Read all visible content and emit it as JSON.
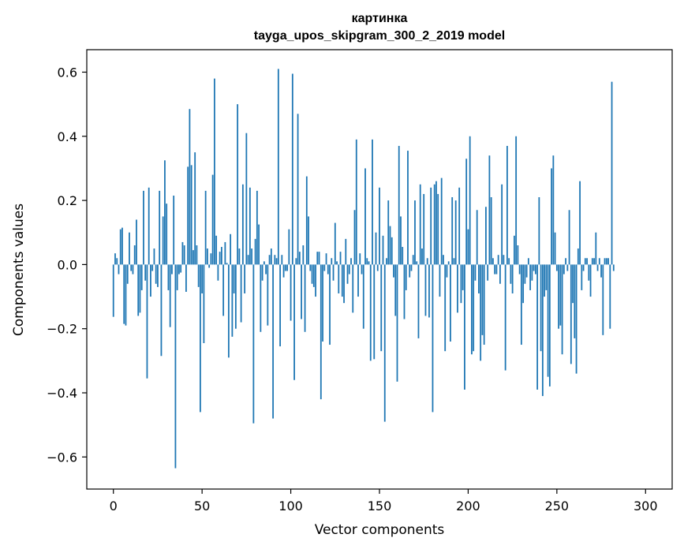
{
  "chart_data": {
    "type": "bar",
    "title_line1": "картинка",
    "title_line2": "tayga_upos_skipgram_300_2_2019 model",
    "xlabel": "Vector components",
    "ylabel": "Components values",
    "xlim": [
      -15,
      315
    ],
    "ylim": [
      -0.7,
      0.67
    ],
    "xticks": [
      0,
      50,
      100,
      150,
      200,
      250,
      300
    ],
    "yticks": [
      0.6,
      0.4,
      0.2,
      0.0,
      -0.2,
      -0.4,
      -0.6
    ],
    "ytick_labels": [
      "0.6",
      "0.4",
      "0.2",
      "0.0",
      "−0.2",
      "−0.4",
      "−0.6"
    ],
    "xtick_labels": [
      "0",
      "50",
      "100",
      "150",
      "200",
      "250",
      "300"
    ],
    "color": "#1f77b4",
    "values": [
      -0.163,
      0.035,
      0.02,
      -0.03,
      0.11,
      0.115,
      -0.185,
      -0.19,
      -0.06,
      0.1,
      -0.02,
      -0.03,
      0.06,
      0.14,
      -0.16,
      -0.15,
      -0.08,
      0.23,
      -0.05,
      -0.355,
      0.24,
      -0.1,
      -0.02,
      0.05,
      -0.06,
      -0.07,
      0.23,
      -0.285,
      0.15,
      0.325,
      0.19,
      -0.08,
      -0.195,
      -0.03,
      0.215,
      -0.635,
      -0.08,
      -0.03,
      -0.025,
      0.07,
      0.06,
      -0.085,
      0.305,
      0.485,
      0.31,
      0.045,
      0.35,
      0.06,
      -0.07,
      -0.46,
      -0.09,
      -0.245,
      0.23,
      0.05,
      -0.01,
      0.035,
      0.28,
      0.58,
      0.09,
      -0.05,
      0.04,
      0.055,
      -0.16,
      0.07,
      0.005,
      -0.29,
      0.095,
      -0.225,
      -0.09,
      -0.2,
      0.5,
      0.05,
      -0.18,
      0.25,
      -0.09,
      0.41,
      0.03,
      0.24,
      0.05,
      -0.495,
      0.08,
      0.23,
      0.125,
      -0.21,
      -0.05,
      0.01,
      -0.03,
      -0.19,
      0.03,
      0.05,
      -0.48,
      0.03,
      0.02,
      0.61,
      -0.255,
      0.03,
      -0.04,
      -0.02,
      -0.02,
      0.11,
      -0.175,
      0.595,
      -0.36,
      0.02,
      0.47,
      0.04,
      -0.17,
      0.06,
      -0.21,
      0.275,
      0.15,
      -0.02,
      -0.06,
      -0.07,
      -0.1,
      0.04,
      0.04,
      -0.42,
      -0.24,
      -0.02,
      0.035,
      -0.03,
      -0.25,
      0.02,
      -0.05,
      0.13,
      0.01,
      -0.09,
      0.04,
      -0.1,
      -0.12,
      0.08,
      -0.06,
      -0.03,
      0.02,
      -0.15,
      0.17,
      0.39,
      -0.1,
      0.035,
      -0.03,
      -0.2,
      0.3,
      0.02,
      0.01,
      -0.3,
      0.39,
      -0.295,
      0.1,
      -0.02,
      0.24,
      -0.27,
      0.09,
      -0.49,
      0.02,
      0.2,
      0.12,
      0.085,
      -0.04,
      -0.16,
      -0.365,
      0.37,
      0.15,
      0.055,
      -0.17,
      -0.08,
      0.355,
      -0.04,
      -0.02,
      0.03,
      0.2,
      0.01,
      -0.23,
      0.25,
      0.05,
      0.22,
      -0.16,
      0.02,
      -0.165,
      0.24,
      -0.46,
      0.25,
      0.26,
      0.22,
      -0.1,
      0.27,
      0.03,
      -0.27,
      -0.04,
      0.01,
      -0.24,
      0.21,
      0.02,
      0.2,
      -0.15,
      0.24,
      -0.12,
      -0.08,
      -0.39,
      0.33,
      0.11,
      0.4,
      -0.28,
      -0.27,
      -0.05,
      0.17,
      -0.09,
      -0.3,
      -0.22,
      -0.25,
      0.18,
      -0.05,
      0.34,
      0.21,
      0.02,
      -0.03,
      -0.03,
      0.03,
      -0.06,
      0.25,
      0.03,
      -0.33,
      0.37,
      0.02,
      -0.06,
      -0.09,
      0.09,
      0.4,
      0.06,
      -0.03,
      -0.25,
      -0.12,
      -0.06,
      -0.04,
      0.02,
      -0.08,
      -0.05,
      -0.02,
      -0.03,
      -0.39,
      0.21,
      -0.27,
      -0.41,
      -0.1,
      -0.08,
      -0.35,
      -0.38,
      0.3,
      0.34,
      0.1,
      -0.02,
      -0.2,
      -0.19,
      -0.28,
      -0.03,
      0.02,
      -0.02,
      0.17,
      -0.31,
      -0.12,
      -0.23,
      -0.34,
      0.05,
      0.26,
      -0.08,
      -0.02,
      0.02,
      0.02,
      -0.05,
      -0.1,
      0.02,
      0.02,
      0.1,
      -0.02,
      0.02,
      -0.04,
      -0.22,
      0.02,
      0.02,
      0.02,
      -0.2,
      0.57,
      -0.02
    ]
  }
}
